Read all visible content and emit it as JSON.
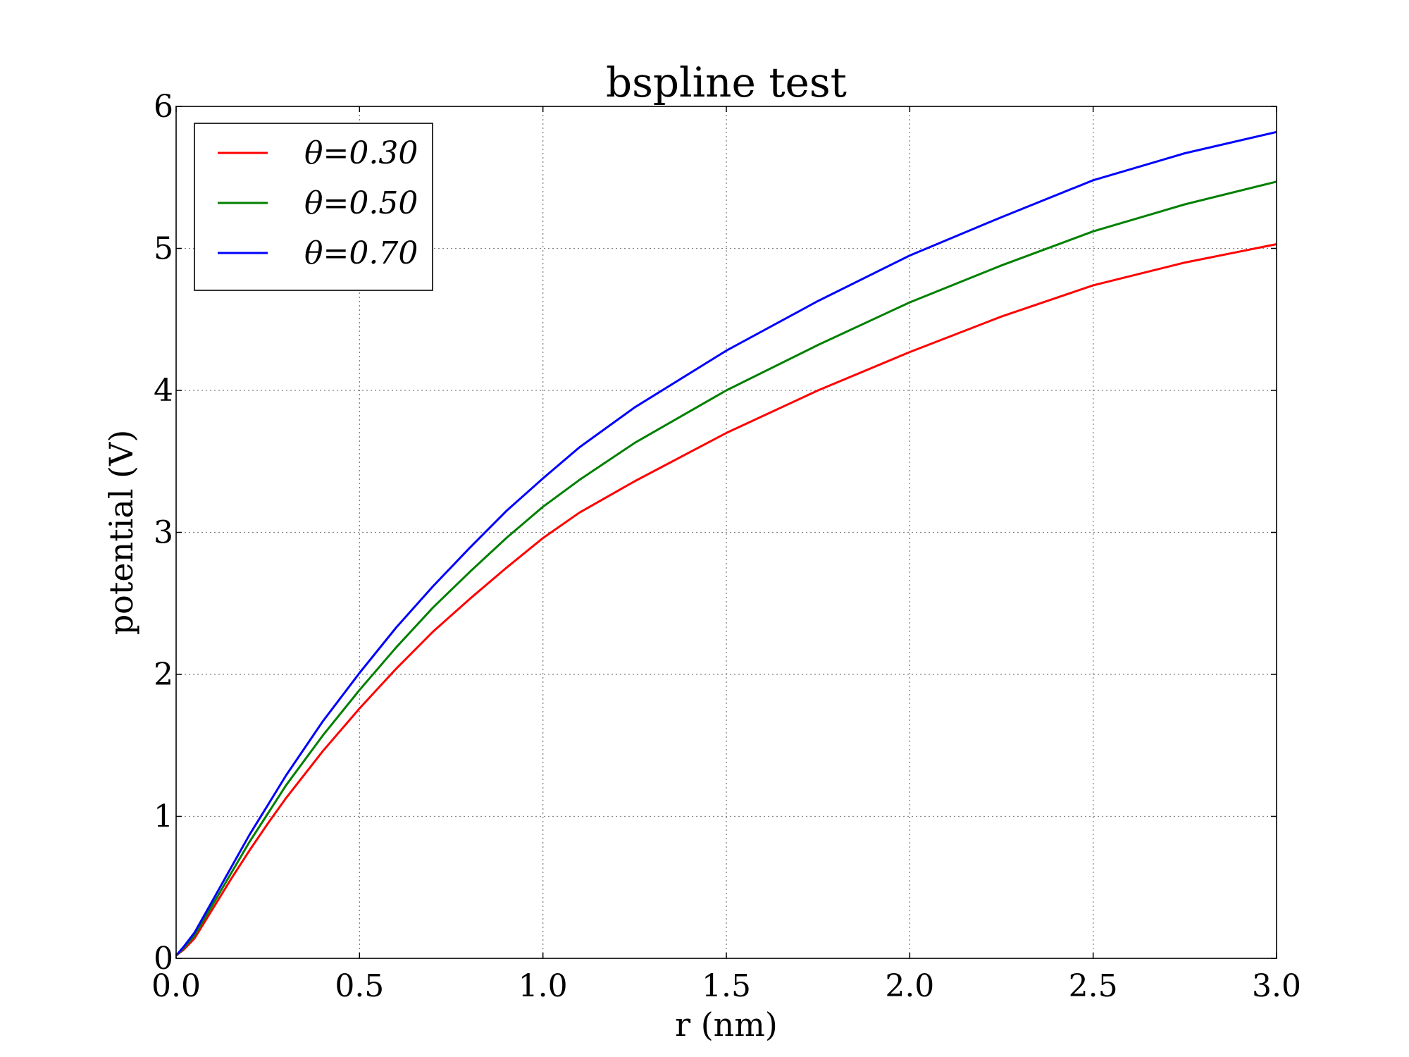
{
  "chart_data": {
    "type": "line",
    "title": "bspline test",
    "xlabel": "r (nm)",
    "ylabel": "potential (V)",
    "xlim": [
      0,
      3
    ],
    "ylim": [
      0,
      6
    ],
    "xticks": [
      "0.0",
      "0.5",
      "1.0",
      "1.5",
      "2.0",
      "2.5",
      "3.0"
    ],
    "yticks": [
      "0",
      "1",
      "2",
      "3",
      "4",
      "5",
      "6"
    ],
    "grid": true,
    "legend_position": "upper-left",
    "x": [
      0.0,
      0.02,
      0.05,
      0.1,
      0.15,
      0.2,
      0.25,
      0.3,
      0.4,
      0.5,
      0.6,
      0.7,
      0.8,
      0.9,
      1.0,
      1.1,
      1.25,
      1.5,
      1.75,
      2.0,
      2.25,
      2.5,
      2.75,
      3.0
    ],
    "series": [
      {
        "name": "θ=0.30",
        "color": "#ff0000",
        "values": [
          0.02,
          0.06,
          0.14,
          0.35,
          0.56,
          0.76,
          0.95,
          1.13,
          1.46,
          1.76,
          2.04,
          2.3,
          2.53,
          2.75,
          2.96,
          3.14,
          3.36,
          3.7,
          4.0,
          4.27,
          4.52,
          4.74,
          4.9,
          5.03
        ]
      },
      {
        "name": "θ=0.50",
        "color": "#008000",
        "values": [
          0.02,
          0.07,
          0.16,
          0.38,
          0.6,
          0.82,
          1.02,
          1.22,
          1.57,
          1.89,
          2.19,
          2.47,
          2.72,
          2.96,
          3.18,
          3.37,
          3.63,
          4.0,
          4.32,
          4.62,
          4.88,
          5.12,
          5.31,
          5.47
        ]
      },
      {
        "name": "θ=0.70",
        "color": "#0000ff",
        "values": [
          0.02,
          0.08,
          0.18,
          0.41,
          0.64,
          0.87,
          1.08,
          1.29,
          1.67,
          2.01,
          2.33,
          2.62,
          2.89,
          3.15,
          3.38,
          3.6,
          3.88,
          4.28,
          4.63,
          4.95,
          5.22,
          5.48,
          5.67,
          5.82
        ]
      }
    ]
  }
}
